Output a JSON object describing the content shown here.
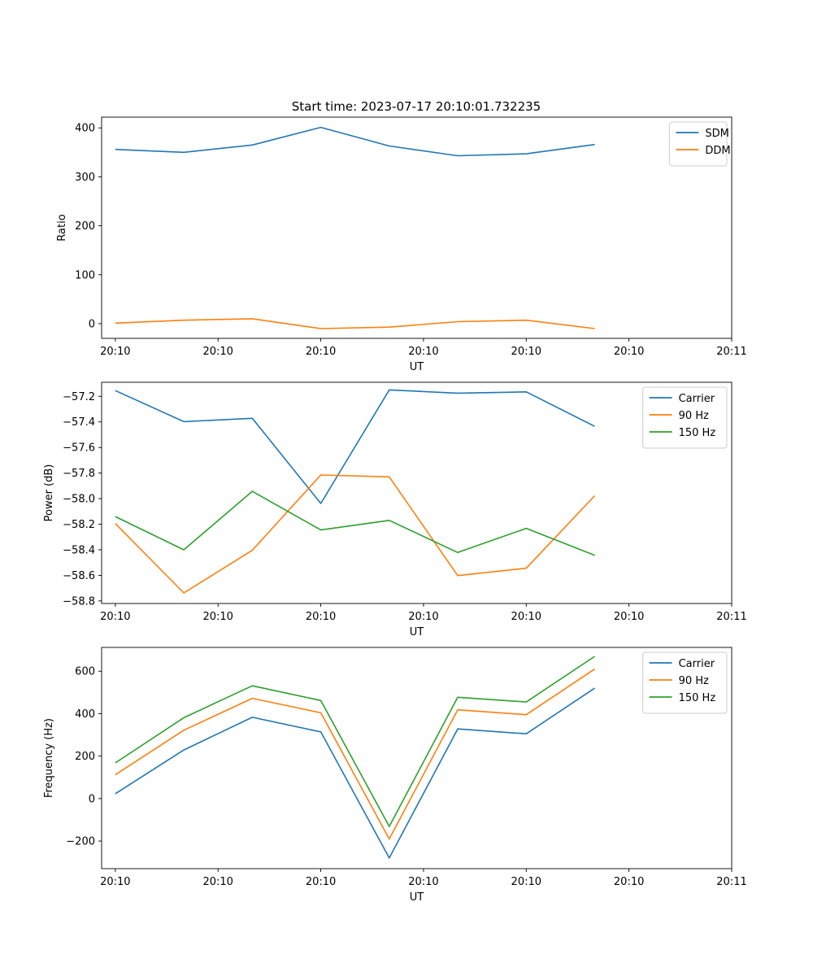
{
  "figure_title": "Start time: 2023-07-17 20:10:01.732235",
  "chart_data": [
    {
      "type": "line",
      "title": "Start time: 2023-07-17 20:10:01.732235",
      "xlabel": "UT",
      "ylabel": "Ratio",
      "x": [
        1,
        2,
        3,
        4,
        5,
        6,
        7,
        8
      ],
      "xlim": [
        0.8,
        10.0
      ],
      "xticks": [
        1,
        2.5,
        4,
        5.5,
        7,
        8.5,
        10
      ],
      "xticklabels": [
        "20:10",
        "20:10",
        "20:10",
        "20:10",
        "20:10",
        "20:10",
        "20:11"
      ],
      "ylim": [
        -30,
        422
      ],
      "yticks": [
        0,
        100,
        200,
        300,
        400
      ],
      "yticklabels": [
        "0",
        "100",
        "200",
        "300",
        "400"
      ],
      "legend_position": "top-right",
      "grid": false,
      "series": [
        {
          "name": "SDM",
          "color": "#1f77b4",
          "values": [
            356,
            350,
            365,
            401,
            363,
            343,
            347,
            366
          ]
        },
        {
          "name": "DDM",
          "color": "#ff7f0e",
          "values": [
            1,
            7,
            10,
            -10,
            -7,
            4,
            7,
            -10
          ]
        }
      ]
    },
    {
      "type": "line",
      "title": "",
      "xlabel": "UT",
      "ylabel": "Power (dB)",
      "x": [
        1,
        2,
        3,
        4,
        5,
        6,
        7,
        8
      ],
      "xlim": [
        0.8,
        10.0
      ],
      "xticks": [
        1,
        2.5,
        4,
        5.5,
        7,
        8.5,
        10
      ],
      "xticklabels": [
        "20:10",
        "20:10",
        "20:10",
        "20:10",
        "20:10",
        "20:10",
        "20:11"
      ],
      "ylim": [
        -58.82,
        -57.09
      ],
      "yticks": [
        -58.8,
        -58.6,
        -58.4,
        -58.2,
        -58.0,
        -57.8,
        -57.6,
        -57.4,
        -57.2
      ],
      "yticklabels": [
        "−58.8",
        "−58.6",
        "−58.4",
        "−58.2",
        "−58.0",
        "−57.8",
        "−57.6",
        "−57.4",
        "−57.2"
      ],
      "legend_position": "top-right",
      "grid": false,
      "series": [
        {
          "name": "Carrier",
          "color": "#1f77b4",
          "values": [
            -57.155,
            -57.398,
            -57.372,
            -58.038,
            -57.15,
            -57.175,
            -57.165,
            -57.435
          ]
        },
        {
          "name": "90 Hz",
          "color": "#ff7f0e",
          "values": [
            -58.195,
            -58.737,
            -58.404,
            -57.815,
            -57.83,
            -58.602,
            -58.544,
            -57.977
          ]
        },
        {
          "name": "150 Hz",
          "color": "#2ca02c",
          "values": [
            -58.14,
            -58.4,
            -57.943,
            -58.245,
            -58.17,
            -58.421,
            -58.232,
            -58.443
          ]
        }
      ]
    },
    {
      "type": "line",
      "title": "",
      "xlabel": "UT",
      "ylabel": "Frequency (Hz)",
      "x": [
        1,
        2,
        3,
        4,
        5,
        6,
        7,
        8
      ],
      "xlim": [
        0.8,
        10.0
      ],
      "xticks": [
        1,
        2.5,
        4,
        5.5,
        7,
        8.5,
        10
      ],
      "xticklabels": [
        "20:10",
        "20:10",
        "20:10",
        "20:10",
        "20:10",
        "20:10",
        "20:11"
      ],
      "ylim": [
        -330,
        712
      ],
      "yticks": [
        -200,
        0,
        200,
        400,
        600
      ],
      "yticklabels": [
        "−200",
        "0",
        "200",
        "400",
        "600"
      ],
      "legend_position": "top-right",
      "grid": false,
      "series": [
        {
          "name": "Carrier",
          "color": "#1f77b4",
          "values": [
            23,
            229,
            383,
            314,
            -280,
            328,
            305,
            520
          ]
        },
        {
          "name": "90 Hz",
          "color": "#ff7f0e",
          "values": [
            112,
            322,
            472,
            404,
            -190,
            418,
            395,
            610
          ]
        },
        {
          "name": "150 Hz",
          "color": "#2ca02c",
          "values": [
            168,
            381,
            531,
            462,
            -131,
            477,
            455,
            670
          ]
        }
      ]
    }
  ]
}
